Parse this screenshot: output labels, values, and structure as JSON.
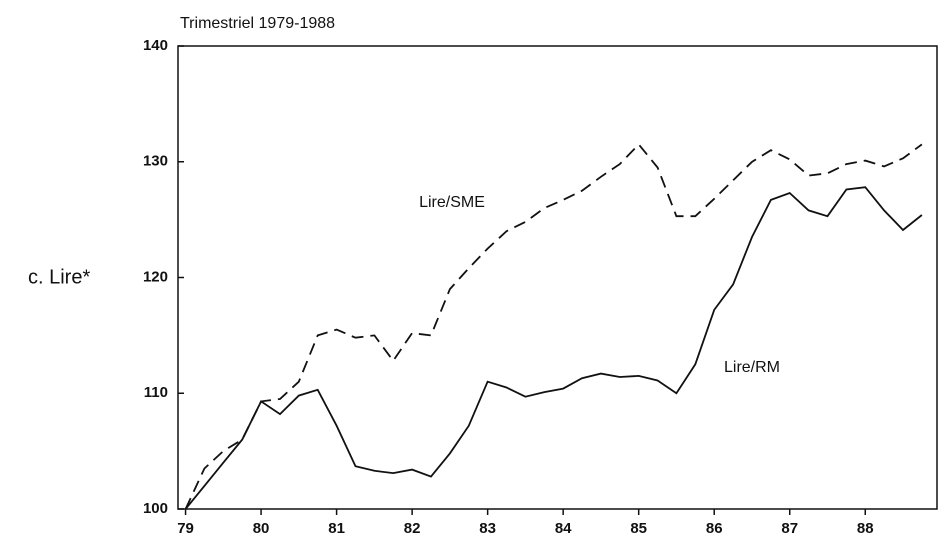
{
  "chart_data": {
    "type": "line",
    "subtitle": "Trimestriel 1979-1988",
    "y_label": "c. Lire*",
    "x": [
      79,
      79.25,
      79.5,
      79.75,
      80,
      80.25,
      80.5,
      80.75,
      81,
      81.25,
      81.5,
      81.75,
      82,
      82.25,
      82.5,
      82.75,
      83,
      83.25,
      83.5,
      83.75,
      84,
      84.25,
      84.5,
      84.75,
      85,
      85.25,
      85.5,
      85.75,
      86,
      86.25,
      86.5,
      86.75,
      87,
      87.25,
      87.5,
      87.75,
      88,
      88.25,
      88.5,
      88.75
    ],
    "series": [
      {
        "name": "Lire/SME",
        "color": "#111111",
        "dash": true,
        "values": [
          100,
          103.5,
          105,
          106,
          109.3,
          109.5,
          111,
          115,
          115.5,
          114.8,
          115,
          112.8,
          115.2,
          115,
          119,
          120.8,
          122.5,
          124,
          124.8,
          126,
          126.7,
          127.5,
          128.7,
          129.8,
          131.5,
          129.5,
          125.3,
          125.3,
          126.8,
          128.4,
          130,
          131,
          130.2,
          128.8,
          129,
          129.8,
          130.1,
          129.6,
          130.3,
          131.5
        ]
      },
      {
        "name": "Lire/RM",
        "color": "#111111",
        "dash": false,
        "values": [
          100,
          102,
          104,
          106,
          109.3,
          108.2,
          109.8,
          110.3,
          107.2,
          103.7,
          103.3,
          103.1,
          103.4,
          102.8,
          104.8,
          107.2,
          111,
          110.5,
          109.7,
          110.1,
          110.4,
          111.3,
          111.7,
          111.4,
          111.5,
          111.1,
          110,
          112.5,
          117.2,
          119.4,
          123.5,
          126.7,
          127.3,
          125.8,
          125.3,
          127.6,
          127.8,
          125.8,
          124.1,
          125.4
        ]
      }
    ],
    "xlim": [
      78.9,
      88.95
    ],
    "xticks": [
      79,
      80,
      81,
      82,
      83,
      84,
      85,
      86,
      87,
      88
    ],
    "ylim": [
      100,
      140
    ],
    "yticks": [
      100,
      110,
      120,
      130,
      140
    ],
    "grid": false
  }
}
